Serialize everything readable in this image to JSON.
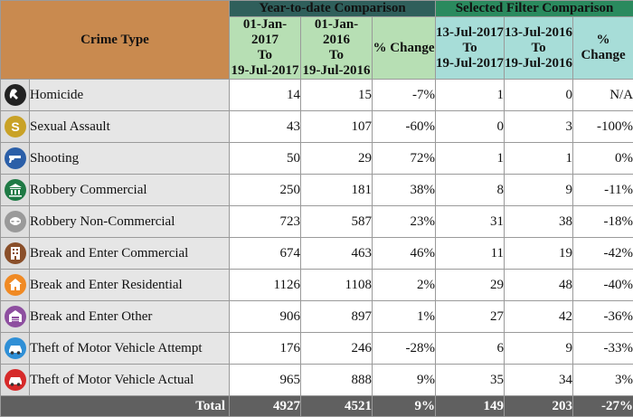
{
  "header": {
    "crime_type": "Crime Type",
    "ytd_group": "Year-to-date Comparison",
    "selected_group": "Selected Filter Comparison",
    "ytd_current": [
      "01-Jan-2017",
      "To",
      "19-Jul-2017"
    ],
    "ytd_previous": [
      "01-Jan-2016",
      "To",
      "19-Jul-2016"
    ],
    "selected_current": [
      "13-Jul-2017",
      "To",
      "19-Jul-2017"
    ],
    "selected_previous": [
      "13-Jul-2016",
      "To",
      "19-Jul-2016"
    ],
    "pct_change": "% Change"
  },
  "rows": [
    {
      "name": "Homicide",
      "icon": "homicide-icon",
      "color": "#222222",
      "ytd_2017": "14",
      "ytd_2016": "15",
      "ytd_pct": "-7%",
      "sel_2017": "1",
      "sel_2016": "0",
      "sel_pct": "N/A"
    },
    {
      "name": "Sexual Assault",
      "icon": "sexual-assault-icon",
      "color": "#c9a227",
      "ytd_2017": "43",
      "ytd_2016": "107",
      "ytd_pct": "-60%",
      "sel_2017": "0",
      "sel_2016": "3",
      "sel_pct": "-100%"
    },
    {
      "name": "Shooting",
      "icon": "gun-icon",
      "color": "#2b5fa8",
      "ytd_2017": "50",
      "ytd_2016": "29",
      "ytd_pct": "72%",
      "sel_2017": "1",
      "sel_2016": "1",
      "sel_pct": "0%"
    },
    {
      "name": "Robbery Commercial",
      "icon": "bank-icon",
      "color": "#1f7a45",
      "ytd_2017": "250",
      "ytd_2016": "181",
      "ytd_pct": "38%",
      "sel_2017": "8",
      "sel_2016": "9",
      "sel_pct": "-11%"
    },
    {
      "name": "Robbery Non-Commercial",
      "icon": "masked-robber-icon",
      "color": "#9a9a9a",
      "ytd_2017": "723",
      "ytd_2016": "587",
      "ytd_pct": "23%",
      "sel_2017": "31",
      "sel_2016": "38",
      "sel_pct": "-18%"
    },
    {
      "name": "Break and Enter Commercial",
      "icon": "commercial-building-icon",
      "color": "#8a4f2a",
      "ytd_2017": "674",
      "ytd_2016": "463",
      "ytd_pct": "46%",
      "sel_2017": "11",
      "sel_2016": "19",
      "sel_pct": "-42%"
    },
    {
      "name": "Break and Enter Residential",
      "icon": "house-icon",
      "color": "#f08a24",
      "ytd_2017": "1126",
      "ytd_2016": "1108",
      "ytd_pct": "2%",
      "sel_2017": "29",
      "sel_2016": "48",
      "sel_pct": "-40%"
    },
    {
      "name": "Break and Enter Other",
      "icon": "warehouse-icon",
      "color": "#8e4fa0",
      "ytd_2017": "906",
      "ytd_2016": "897",
      "ytd_pct": "1%",
      "sel_2017": "27",
      "sel_2016": "42",
      "sel_pct": "-36%"
    },
    {
      "name": "Theft of Motor Vehicle Attempt",
      "icon": "car-icon",
      "color": "#2f8fd6",
      "ytd_2017": "176",
      "ytd_2016": "246",
      "ytd_pct": "-28%",
      "sel_2017": "6",
      "sel_2016": "9",
      "sel_pct": "-33%"
    },
    {
      "name": "Theft of Motor Vehicle Actual",
      "icon": "car-icon",
      "color": "#d62a2a",
      "ytd_2017": "965",
      "ytd_2016": "888",
      "ytd_pct": "9%",
      "sel_2017": "35",
      "sel_2016": "34",
      "sel_pct": "3%"
    }
  ],
  "total": {
    "label": "Total",
    "ytd_2017": "4927",
    "ytd_2016": "4521",
    "ytd_pct": "9%",
    "sel_2017": "149",
    "sel_2016": "203",
    "sel_pct": "-27%"
  }
}
